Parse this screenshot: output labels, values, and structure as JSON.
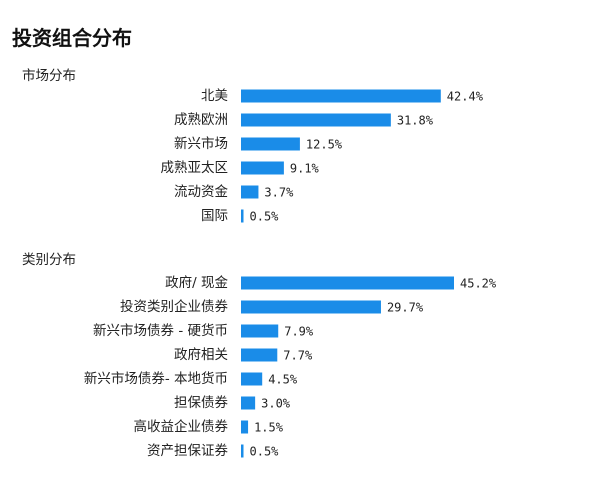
{
  "page": {
    "title": "投资组合分布"
  },
  "colors": {
    "bar": "#1a8ce8"
  },
  "chart_data": [
    {
      "type": "bar",
      "orientation": "horizontal",
      "title": "市场分布",
      "categories": [
        "北美",
        "成熟欧洲",
        "新兴市场",
        "成熟亚太区",
        "流动资金",
        "国际"
      ],
      "values": [
        42.4,
        31.8,
        12.5,
        9.1,
        3.7,
        0.5
      ],
      "value_labels": [
        "42.4%",
        "31.8%",
        "12.5%",
        "9.1%",
        "3.7%",
        "0.5%"
      ],
      "unit": "%",
      "xlim": [
        0,
        45.2
      ],
      "grid": false,
      "legend": "none"
    },
    {
      "type": "bar",
      "orientation": "horizontal",
      "title": "类别分布",
      "categories": [
        "政府/ 现金",
        "投资类别企业债券",
        "新兴市场债券 - 硬货币",
        "政府相关",
        "新兴市场债券- 本地货币",
        "担保债券",
        "高收益企业债券",
        "资产担保证券"
      ],
      "values": [
        45.2,
        29.7,
        7.9,
        7.7,
        4.5,
        3.0,
        1.5,
        0.5
      ],
      "value_labels": [
        "45.2%",
        "29.7%",
        "7.9%",
        "7.7%",
        "4.5%",
        "3.0%",
        "1.5%",
        "0.5%"
      ],
      "unit": "%",
      "xlim": [
        0,
        45.2
      ],
      "grid": false,
      "legend": "none"
    }
  ]
}
